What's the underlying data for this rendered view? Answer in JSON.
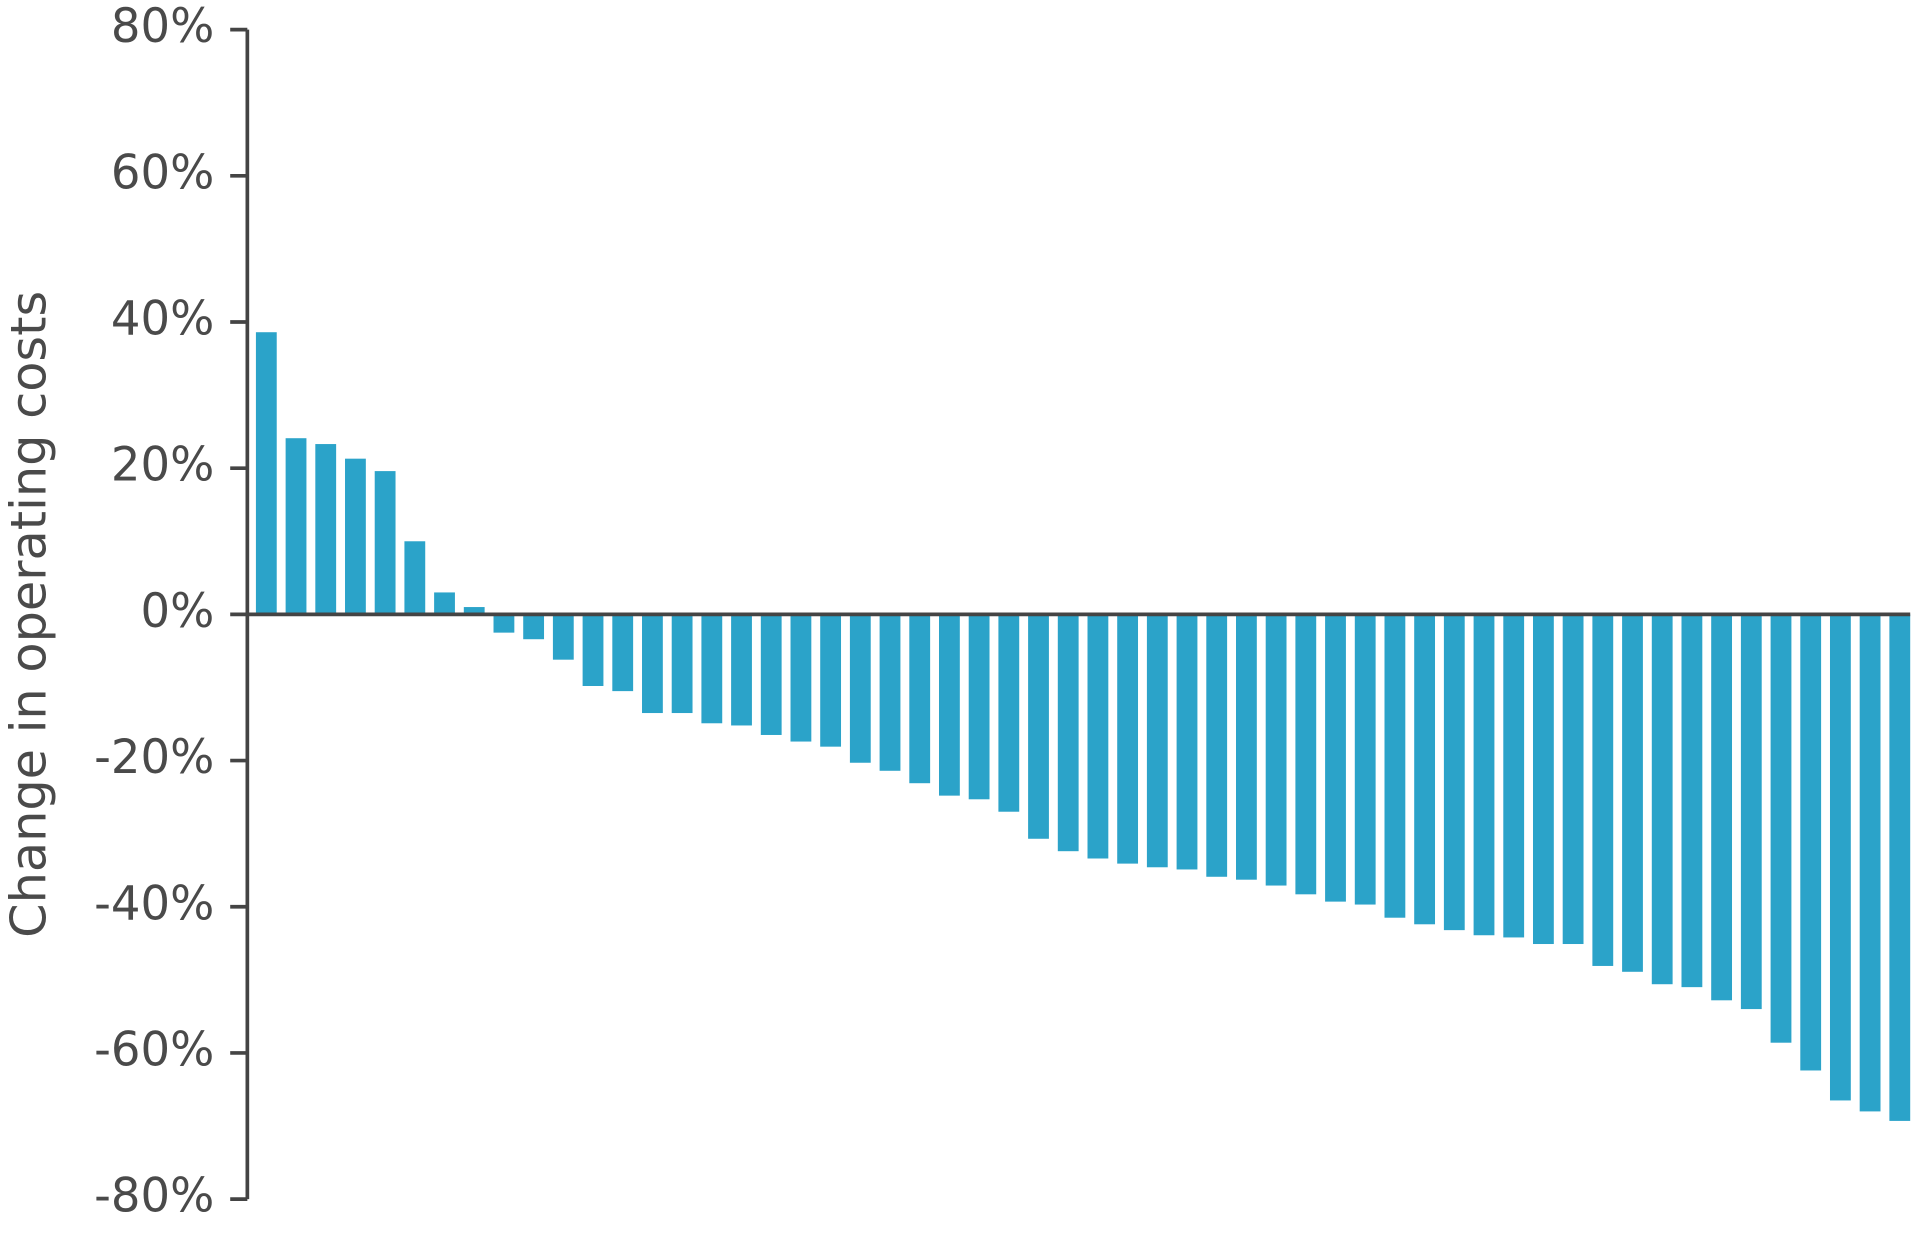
{
  "chart_data": {
    "type": "bar",
    "y_label": "Change in operating costs",
    "categories": [
      null,
      null,
      null,
      null,
      null,
      null,
      null,
      null,
      null,
      null,
      null,
      null,
      null,
      null,
      null,
      null,
      null,
      null,
      null,
      null,
      null,
      null,
      null,
      null,
      null,
      null,
      null,
      null,
      null,
      null,
      null,
      null,
      null,
      null,
      null,
      null,
      null,
      null,
      null,
      null,
      null,
      null,
      null,
      null,
      null,
      null,
      null,
      null,
      null,
      null,
      null,
      null,
      null,
      null,
      null,
      null
    ],
    "values": [
      38.6,
      24.1,
      23.3,
      21.3,
      19.6,
      10.0,
      3.0,
      1.0,
      -2.5,
      -3.4,
      -6.2,
      -9.8,
      -10.5,
      -13.5,
      -13.5,
      -14.9,
      -15.2,
      -16.5,
      -17.4,
      -18.1,
      -20.3,
      -21.4,
      -23.1,
      -24.8,
      -25.3,
      -27.0,
      -30.7,
      -32.4,
      -33.4,
      -34.1,
      -34.6,
      -34.9,
      -35.9,
      -36.3,
      -37.1,
      -38.3,
      -39.3,
      -39.7,
      -41.5,
      -42.4,
      -43.2,
      -43.9,
      -44.2,
      -45.1,
      -45.1,
      -48.1,
      -48.9,
      -50.6,
      -51.0,
      -52.8,
      -54.0,
      -58.6,
      -62.4,
      -66.5,
      -68.0,
      -69.3
    ],
    "color": "#2ba3c9",
    "ylim": [
      -80,
      80
    ],
    "yticks": [
      {
        "value": -80,
        "label": "-80%"
      },
      {
        "value": -60,
        "label": "-60%"
      },
      {
        "value": -40,
        "label": "-40%"
      },
      {
        "value": -20,
        "label": "-20%"
      },
      {
        "value": 0,
        "label": "0%"
      },
      {
        "value": 20,
        "label": "20%"
      },
      {
        "value": 40,
        "label": "40%"
      },
      {
        "value": 60,
        "label": "60%"
      },
      {
        "value": 80,
        "label": "80%"
      }
    ],
    "grid": false
  }
}
